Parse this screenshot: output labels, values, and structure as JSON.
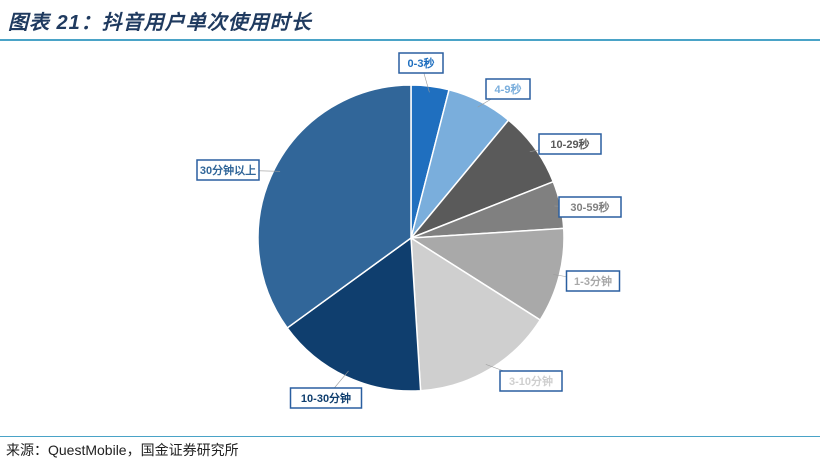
{
  "header": {
    "title": "图表 21：抖音用户单次使用时长"
  },
  "chart_data": {
    "type": "pie",
    "title": "",
    "start_angle_deg": 0,
    "direction": "clockwise",
    "categories": [
      "0-3秒",
      "4-9秒",
      "10-29秒",
      "30-59秒",
      "1-3分钟",
      "3-10分钟",
      "10-30分钟",
      "30分钟以上"
    ],
    "values": [
      4,
      7,
      8,
      5,
      10,
      15,
      16,
      35
    ],
    "colors": [
      "#1f6fbf",
      "#7aaedc",
      "#5a5a5a",
      "#808080",
      "#a9a9a9",
      "#cfcfcf",
      "#0f3e6e",
      "#316699"
    ],
    "label_colors": [
      "#1f6fbf",
      "#7aaedc",
      "#5a5a5a",
      "#808080",
      "#a9a9a9",
      "#cfcfcf",
      "#0f3e6e",
      "#316699"
    ]
  },
  "footer": {
    "source": "来源：QuestMobile，国金证券研究所"
  }
}
